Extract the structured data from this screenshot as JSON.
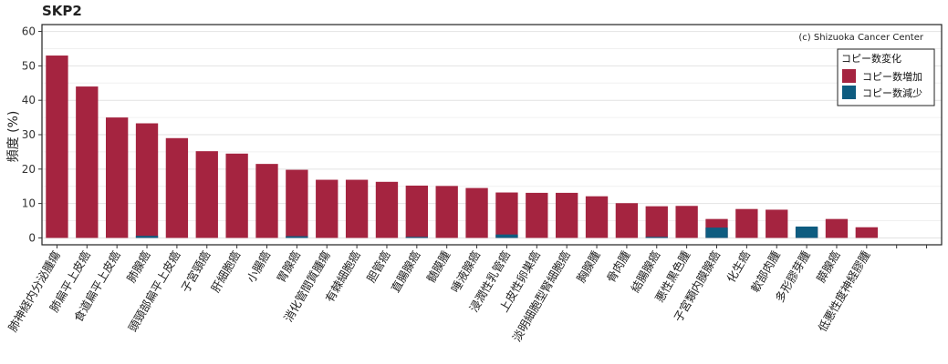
{
  "chart_data": {
    "type": "bar",
    "title": "SKP2",
    "ylabel": "頻度 (%)",
    "xlabel": "",
    "ylim": [
      -2,
      62
    ],
    "yticks": [
      0,
      10,
      20,
      30,
      40,
      50,
      60
    ],
    "credit": "(c) Shizuoka Cancer Center",
    "grid": true,
    "legend": {
      "title": "コピー数変化",
      "placement": "top-right",
      "entries": [
        {
          "label": "コピー数増加",
          "color": "#A52440"
        },
        {
          "label": "コピー数減少",
          "color": "#0E5C80"
        }
      ]
    },
    "categories": [
      "肺神経内分泌腫瘍",
      "肺扁平上皮癌",
      "食道扁平上皮癌",
      "肺腺癌",
      "頭頸部扁平上皮癌",
      "子宮頸癌",
      "肝細胞癌",
      "小腸癌",
      "胃腺癌",
      "消化管間質腫瘍",
      "有棘細胞癌",
      "胆管癌",
      "直腸腺癌",
      "髄膜腫",
      "唾液腺癌",
      "浸潤性乳管癌",
      "上皮性卵巣癌",
      "淡明細胞型腎細胞癌",
      "胸腺腫",
      "骨肉腫",
      "結腸腺癌",
      "悪性黒色腫",
      "子宮類内膜腺癌",
      "化生癌",
      "軟部肉腫",
      "多形膠芽腫",
      "膵腺癌",
      "低悪性度神経膠腫"
    ],
    "series": [
      {
        "name": "コピー数増加",
        "values": [
          53,
          44,
          35,
          33.3,
          29,
          25.2,
          24.5,
          21.5,
          19.8,
          16.9,
          16.9,
          16.3,
          15.2,
          15.1,
          14.5,
          13.2,
          13.1,
          13.1,
          12.1,
          10.1,
          9.2,
          9.3,
          5.5,
          8.4,
          8.2,
          3.0,
          5.5,
          3.1
        ]
      },
      {
        "name": "コピー数減少",
        "values": [
          0,
          0,
          0,
          0.6,
          0,
          0,
          0,
          0,
          0.5,
          0,
          0,
          0,
          0.3,
          0,
          0,
          1.0,
          0,
          0,
          0,
          0,
          0.3,
          0,
          3.0,
          0,
          0,
          3.3,
          0,
          0
        ]
      }
    ],
    "extra_slots": 2
  }
}
